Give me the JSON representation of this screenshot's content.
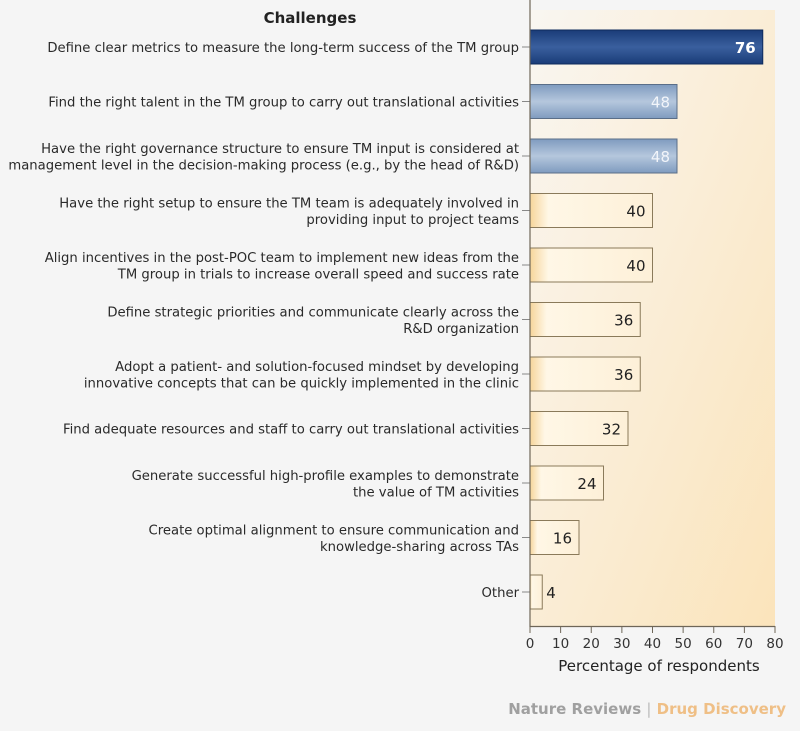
{
  "chart_data": {
    "type": "bar",
    "orientation": "horizontal",
    "title": "Challenges",
    "xlabel": "Percentage of respondents",
    "xlim": [
      0,
      80
    ],
    "xticks": [
      0,
      10,
      20,
      30,
      40,
      50,
      60,
      70,
      80
    ],
    "grid": false,
    "categories": [
      [
        "Define clear metrics to measure the long-term success of the TM group"
      ],
      [
        "Find the right talent in the TM group to carry out translational activities"
      ],
      [
        "Have the right governance structure to ensure TM input is considered at",
        "management level in the decision-making process  (e.g., by the head of R&D)"
      ],
      [
        "Have the right setup to ensure the TM team is adequately involved in",
        "providing input to project teams"
      ],
      [
        "Align incentives in the post-POC team to implement new ideas from the",
        "TM group in trials to increase overall speed and success rate"
      ],
      [
        "Define strategic priorities and communicate clearly across the",
        "R&D organization"
      ],
      [
        "Adopt a patient- and solution-focused mindset by developing",
        "innovative concepts that can be quickly implemented in the clinic"
      ],
      [
        "Find adequate resources and staff to carry out translational activities"
      ],
      [
        "Generate successful high-profile examples to demonstrate",
        "the value of TM activities"
      ],
      [
        "Create optimal alignment to ensure communication and",
        "knowledge-sharing across TAs"
      ],
      [
        "Other"
      ]
    ],
    "values": [
      76,
      48,
      48,
      40,
      40,
      36,
      36,
      32,
      24,
      16,
      4
    ],
    "colors": {
      "top": "#1f4585",
      "second": "#8fa9c9",
      "rest": "#fbe6bd",
      "background": "#fbecd0"
    }
  },
  "footer": {
    "brand1": "Nature Reviews",
    "separator": "|",
    "brand2": "Drug Discovery"
  }
}
